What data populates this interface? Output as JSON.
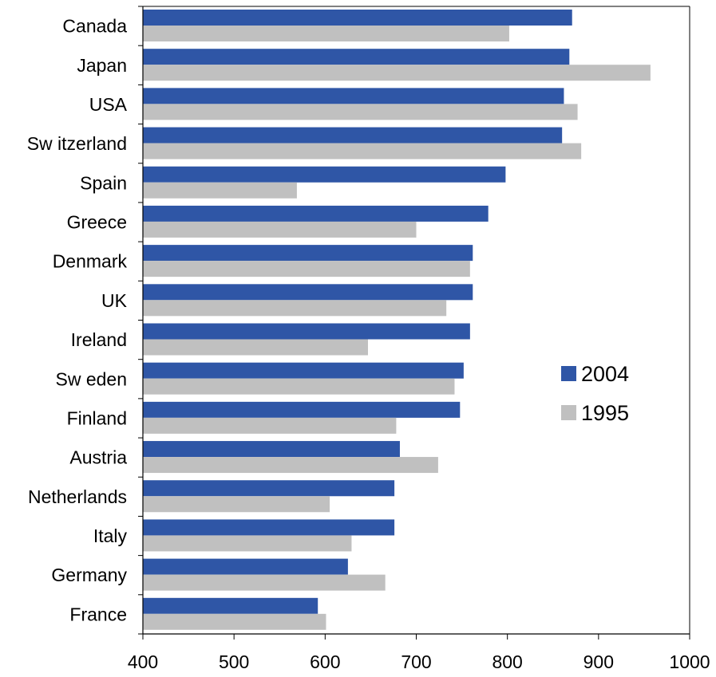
{
  "chart_data": {
    "type": "bar",
    "orientation": "horizontal",
    "categories": [
      "Canada",
      "Japan",
      "USA",
      "Sw itzerland",
      "Spain",
      "Greece",
      "Denmark",
      "UK",
      "Ireland",
      "Sw eden",
      "Finland",
      "Austria",
      "Netherlands",
      "Italy",
      "Germany",
      "France"
    ],
    "series": [
      {
        "name": "2004",
        "color": "#2f56a6",
        "values": [
          871,
          868,
          862,
          860,
          798,
          779,
          762,
          762,
          759,
          752,
          748,
          682,
          676,
          676,
          625,
          592
        ]
      },
      {
        "name": "1995",
        "color": "#c0c0c0",
        "values": [
          802,
          957,
          877,
          881,
          569,
          700,
          759,
          733,
          647,
          742,
          678,
          724,
          605,
          629,
          666,
          601
        ]
      }
    ],
    "xlim": [
      400,
      1000
    ],
    "xticks": [
      "400",
      "500",
      "600",
      "700",
      "800",
      "900",
      "1000"
    ],
    "title": "",
    "xlabel": "",
    "ylabel": "",
    "grid": false,
    "legend_position": "right-middle"
  }
}
